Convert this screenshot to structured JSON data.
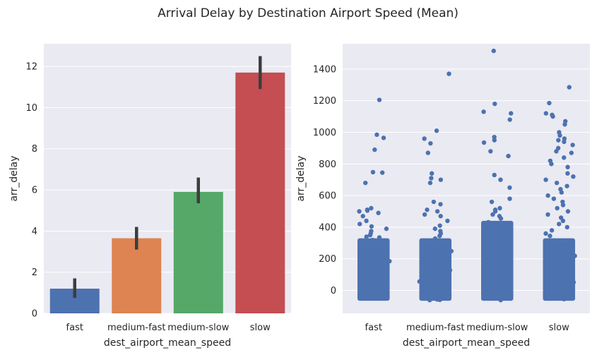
{
  "figure": {
    "title": "Arrival Delay by Destination Airport Speed (Mean)",
    "background": "#ffffff",
    "axes_background": "#eaeaf2",
    "grid_color": "#ffffff"
  },
  "chart_data": [
    {
      "type": "bar",
      "xlabel": "dest_airport_mean_speed",
      "ylabel": "arr_delay",
      "categories": [
        "fast",
        "medium-fast",
        "medium-slow",
        "slow"
      ],
      "values": [
        1.2,
        3.65,
        5.9,
        11.7
      ],
      "error_low": [
        0.75,
        3.1,
        5.35,
        10.9
      ],
      "error_high": [
        1.7,
        4.2,
        6.6,
        12.5
      ],
      "colors": [
        "#4c72b0",
        "#dd8452",
        "#55a868",
        "#c44e52"
      ],
      "ylim": [
        0,
        13.1
      ],
      "yticks": [
        0,
        2,
        4,
        6,
        8,
        10,
        12
      ],
      "grid": true
    },
    {
      "type": "scatter",
      "subtype": "strip",
      "xlabel": "dest_airport_mean_speed",
      "ylabel": "arr_delay",
      "categories": [
        "fast",
        "medium-fast",
        "medium-slow",
        "slow"
      ],
      "color": "#4c72b0",
      "ylim": [
        -145,
        1560
      ],
      "yticks": [
        0,
        200,
        400,
        600,
        800,
        1000,
        1200,
        1400
      ],
      "grid": true,
      "dense_band": {
        "ymin": [
          -65,
          -65,
          -65,
          -65
        ],
        "ymax": [
          330,
          330,
          440,
          330
        ]
      },
      "outliers": [
        [
          335,
          340,
          350,
          360,
          375,
          390,
          405,
          420,
          440,
          470,
          490,
          500,
          505,
          510,
          520,
          680,
          745,
          748,
          890,
          965,
          985,
          1205
        ],
        [
          345,
          360,
          375,
          390,
          410,
          440,
          470,
          480,
          500,
          510,
          545,
          560,
          680,
          700,
          710,
          740,
          870,
          930,
          960,
          1010,
          1370
        ],
        [
          455,
          470,
          480,
          500,
          510,
          520,
          560,
          580,
          650,
          700,
          730,
          850,
          880,
          935,
          950,
          970,
          1080,
          1120,
          1130,
          1180,
          1515
        ],
        [
          345,
          360,
          380,
          400,
          420,
          440,
          460,
          480,
          500,
          520,
          540,
          560,
          580,
          600,
          620,
          640,
          660,
          680,
          700,
          720,
          740,
          780,
          800,
          820,
          840,
          870,
          880,
          900,
          920,
          940,
          950,
          960,
          980,
          1000,
          1050,
          1070,
          1100,
          1110,
          1120,
          1185,
          1285
        ]
      ]
    }
  ]
}
